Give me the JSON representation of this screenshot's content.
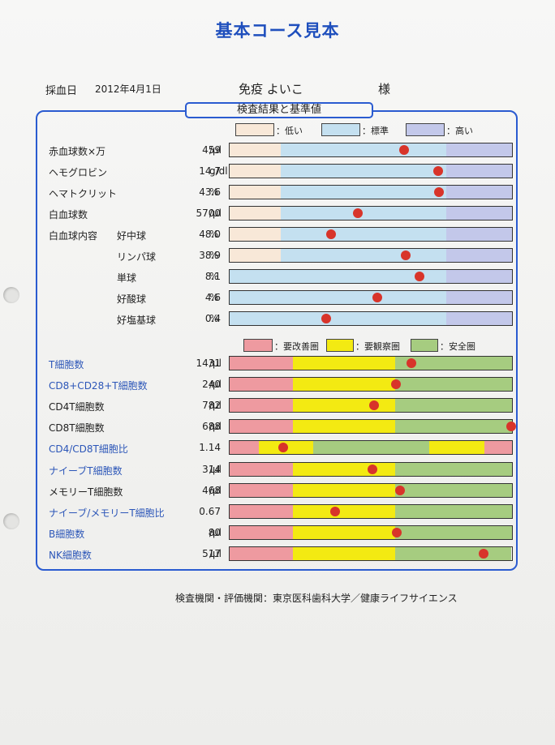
{
  "title": "基本コース見本",
  "header": {
    "date_label": "採血日",
    "date": "2012年4月1日",
    "name": "免疫 よいこ",
    "honorific": "様"
  },
  "section_title": "検査結果と基準値",
  "legend1": [
    {
      "label": "：低い",
      "color": "#f8e8d8"
    },
    {
      "label": "：標準",
      "color": "#c4e0f0"
    },
    {
      "label": "：高い",
      "color": "#c3c8ea"
    }
  ],
  "legend2": [
    {
      "label": "：要改善圏",
      "color": "#ee9aa0"
    },
    {
      "label": "：要観察圏",
      "color": "#f3ea12"
    },
    {
      "label": "：安全圏",
      "color": "#a6cc80"
    }
  ],
  "blood_rows": [
    {
      "name": "赤血球数×万",
      "value": "459",
      "unit": "/μl",
      "marker": 0.617,
      "zones": [
        [
          "low",
          0,
          0.18
        ],
        [
          "std",
          0.18,
          0.766
        ],
        [
          "high",
          0.766,
          1
        ]
      ]
    },
    {
      "name": "ヘモグロビン",
      "value": "14.7",
      "unit": "g/dl",
      "marker": 0.737,
      "zones": [
        [
          "low",
          0,
          0.18
        ],
        [
          "std",
          0.18,
          0.766
        ],
        [
          "high",
          0.766,
          1
        ]
      ]
    },
    {
      "name": "ヘマトクリット",
      "value": "43.6",
      "unit": "%",
      "marker": 0.74,
      "zones": [
        [
          "low",
          0,
          0.18
        ],
        [
          "std",
          0.18,
          0.766
        ],
        [
          "high",
          0.766,
          1
        ]
      ]
    },
    {
      "name": "白血球数",
      "value": "5700",
      "unit": "/μl",
      "marker": 0.454,
      "zones": [
        [
          "low",
          0,
          0.18
        ],
        [
          "std",
          0.18,
          0.766
        ],
        [
          "high",
          0.766,
          1
        ]
      ]
    },
    {
      "group": "白血球内容",
      "name": "好中球",
      "value": "48.0",
      "unit": "%",
      "marker": 0.36,
      "zones": [
        [
          "low",
          0,
          0.18
        ],
        [
          "std",
          0.18,
          0.766
        ],
        [
          "high",
          0.766,
          1
        ]
      ]
    },
    {
      "name": "リンパ球",
      "value": "38.9",
      "unit": "%",
      "marker": 0.623,
      "zones": [
        [
          "low",
          0,
          0.18
        ],
        [
          "std",
          0.18,
          0.766
        ],
        [
          "high",
          0.766,
          1
        ]
      ]
    },
    {
      "name": "単球",
      "value": "8.1",
      "unit": "%",
      "marker": 0.671,
      "zones": [
        [
          "std",
          0,
          0.766
        ],
        [
          "high",
          0.766,
          1
        ]
      ]
    },
    {
      "name": "好酸球",
      "value": "4.6",
      "unit": "%",
      "marker": 0.523,
      "zones": [
        [
          "std",
          0,
          0.766
        ],
        [
          "high",
          0.766,
          1
        ]
      ]
    },
    {
      "name": "好塩基球",
      "value": "0.4",
      "unit": "%",
      "marker": 0.343,
      "zones": [
        [
          "std",
          0,
          0.766
        ],
        [
          "high",
          0.766,
          1
        ]
      ]
    }
  ],
  "immune_rows": [
    {
      "name": "T細胞数",
      "blue": true,
      "value": "1431",
      "unit": "/μl",
      "marker": 0.643,
      "zones": [
        [
          "red",
          0,
          0.223
        ],
        [
          "yellow",
          0.223,
          0.586
        ],
        [
          "green",
          0.586,
          1
        ]
      ]
    },
    {
      "name": "CD8+CD28+T細胞数",
      "blue": true,
      "value": "240",
      "unit": "/μl",
      "marker": 0.589,
      "zones": [
        [
          "red",
          0,
          0.223
        ],
        [
          "yellow",
          0.223,
          0.586
        ],
        [
          "green",
          0.586,
          1
        ]
      ]
    },
    {
      "name": "CD4T細胞数",
      "blue": false,
      "value": "782",
      "unit": "/μl",
      "marker": 0.51,
      "zones": [
        [
          "red",
          0,
          0.223
        ],
        [
          "yellow",
          0.223,
          0.586
        ],
        [
          "green",
          0.586,
          1
        ]
      ]
    },
    {
      "name": "CD8T細胞数",
      "blue": false,
      "value": "688",
      "unit": "/μl",
      "marker": 0.994,
      "zones": [
        [
          "red",
          0,
          0.223
        ],
        [
          "yellow",
          0.223,
          0.586
        ],
        [
          "green",
          0.586,
          1
        ]
      ]
    },
    {
      "name": "CD4/CD8T細胞比",
      "blue": true,
      "value": "1.14",
      "unit": "",
      "marker": 0.191,
      "zones": [
        [
          "red",
          0,
          0.103
        ],
        [
          "yellow",
          0.103,
          0.297
        ],
        [
          "green",
          0.297,
          0.706
        ],
        [
          "yellow",
          0.706,
          0.903
        ],
        [
          "red",
          0.903,
          1
        ]
      ]
    },
    {
      "name": "ナイーブT細胞数",
      "blue": true,
      "value": "314",
      "unit": "/μl",
      "marker": 0.506,
      "zones": [
        [
          "red",
          0,
          0.223
        ],
        [
          "yellow",
          0.223,
          0.586
        ],
        [
          "green",
          0.586,
          1
        ]
      ]
    },
    {
      "name": "メモリーT細胞数",
      "blue": false,
      "value": "468",
      "unit": "/μl",
      "marker": 0.603,
      "zones": [
        [
          "red",
          0,
          0.223
        ],
        [
          "yellow",
          0.223,
          0.586
        ],
        [
          "green",
          0.586,
          1
        ]
      ]
    },
    {
      "name": "ナイーブ/メモリーT細胞比",
      "blue": true,
      "value": "0.67",
      "unit": "",
      "marker": 0.374,
      "zones": [
        [
          "red",
          0,
          0.223
        ],
        [
          "yellow",
          0.223,
          0.586
        ],
        [
          "green",
          0.586,
          1
        ]
      ]
    },
    {
      "name": "B細胞数",
      "blue": true,
      "value": "80",
      "unit": "/μl",
      "marker": 0.591,
      "zones": [
        [
          "red",
          0,
          0.223
        ],
        [
          "yellow",
          0.223,
          0.586
        ],
        [
          "green",
          0.586,
          1
        ]
      ]
    },
    {
      "name": "NK細胞数",
      "blue": true,
      "value": "517",
      "unit": "/μl",
      "marker": 0.897,
      "zones": [
        [
          "red",
          0,
          0.223
        ],
        [
          "yellow",
          0.223,
          0.586
        ],
        [
          "green",
          0.586,
          0.997
        ]
      ]
    }
  ],
  "colors": {
    "low": "#f8e8d8",
    "std": "#c4e0f0",
    "high": "#c3c8ea",
    "red": "#ee9aa0",
    "yellow": "#f3ea12",
    "green": "#a6cc80"
  },
  "footer": "検査機関・評価機関：東京医科歯科大学／健康ライフサイエンス"
}
